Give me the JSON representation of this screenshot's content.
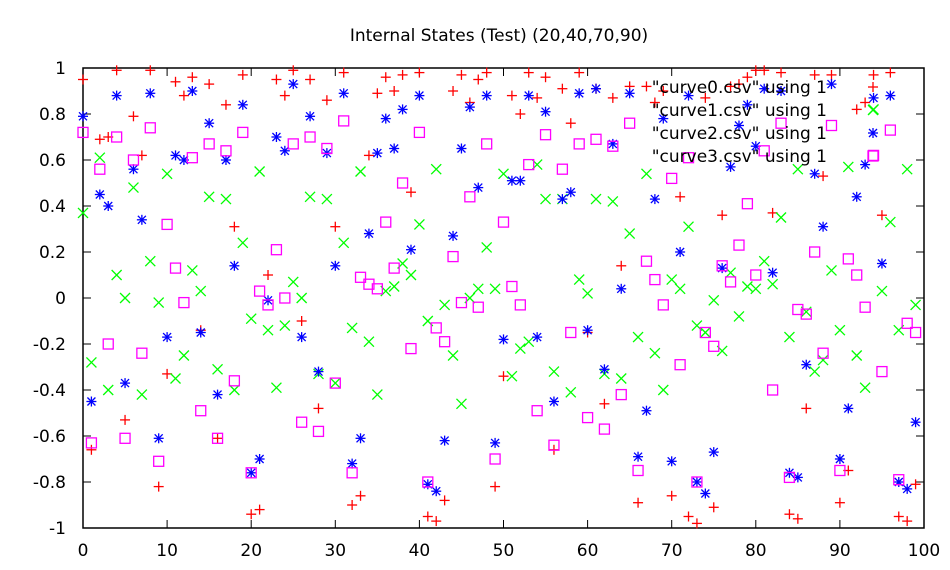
{
  "chart_data": {
    "type": "scatter",
    "title": "Internal States (Test) (20,40,70,90)",
    "xlabel": "",
    "ylabel": "",
    "xlim": [
      0,
      100
    ],
    "ylim": [
      -1,
      1
    ],
    "x_ticks": [
      "0",
      "10",
      "20",
      "30",
      "40",
      "50",
      "60",
      "70",
      "80",
      "90",
      "100"
    ],
    "y_ticks": [
      "-1",
      "-0.8",
      "-0.6",
      "-0.4",
      "-0.2",
      "0",
      "0.2",
      "0.4",
      "0.6",
      "0.8",
      "1"
    ],
    "grid": false,
    "legend_position": "top-right",
    "series": [
      {
        "name": "\"curve0.csv\" using 1",
        "color": "#ff0000",
        "marker": "plus",
        "x": [
          0,
          1,
          2,
          3,
          4,
          5,
          6,
          7,
          8,
          9,
          10,
          11,
          12,
          13,
          14,
          15,
          16,
          17,
          18,
          19,
          20,
          21,
          22,
          23,
          24,
          25,
          26,
          27,
          28,
          29,
          30,
          31,
          32,
          33,
          34,
          35,
          36,
          37,
          38,
          39,
          40,
          41,
          42,
          43,
          44,
          45,
          46,
          47,
          48,
          49,
          50,
          51,
          52,
          53,
          54,
          55,
          56,
          57,
          58,
          59,
          60,
          61,
          62,
          63,
          64,
          65,
          66,
          67,
          68,
          69,
          70,
          71,
          72,
          73,
          74,
          75,
          76,
          77,
          78,
          79,
          80,
          81,
          82,
          83,
          84,
          85,
          86,
          87,
          88,
          89,
          90,
          91,
          92,
          93,
          94,
          95,
          96,
          97,
          98,
          99
        ],
        "values": [
          0.95,
          -0.66,
          0.69,
          0.7,
          0.99,
          -0.53,
          0.79,
          0.62,
          0.99,
          -0.82,
          -0.33,
          0.94,
          0.88,
          0.96,
          -0.14,
          0.93,
          -0.61,
          0.84,
          0.31,
          0.97,
          -0.94,
          -0.92,
          0.1,
          0.95,
          0.88,
          0.99,
          -0.1,
          0.95,
          -0.48,
          0.86,
          0.31,
          0.98,
          -0.9,
          -0.86,
          0.62,
          0.89,
          0.96,
          0.9,
          0.97,
          0.46,
          0.98,
          -0.95,
          -0.97,
          -0.88,
          0.9,
          0.97,
          0.85,
          0.95,
          0.98,
          -0.82,
          -0.34,
          0.88,
          0.8,
          0.98,
          0.87,
          0.96,
          -0.66,
          0.91,
          0.76,
          0.98,
          -0.15,
          0.91,
          -0.46,
          0.87,
          0.14,
          0.92,
          -0.89,
          0.92,
          0.85,
          0.9,
          -0.86,
          0.44,
          -0.95,
          -0.98,
          0.87,
          -0.91,
          0.36,
          0.92,
          0.93,
          0.96,
          0.99,
          0.99,
          0.37,
          0.98,
          -0.94,
          -0.96,
          -0.48,
          0.97,
          0.53,
          0.97,
          -0.89,
          -0.75,
          0.82,
          0.85,
          0.97,
          0.36,
          0.98,
          -0.95,
          -0.97,
          -0.81
        ]
      },
      {
        "name": "\"curve1.csv\" using 1",
        "color": "#00ff00",
        "marker": "cross",
        "x": [
          0,
          1,
          2,
          3,
          4,
          5,
          6,
          7,
          8,
          9,
          10,
          11,
          12,
          13,
          14,
          15,
          16,
          17,
          18,
          19,
          20,
          21,
          22,
          23,
          24,
          25,
          26,
          27,
          28,
          29,
          30,
          31,
          32,
          33,
          34,
          35,
          36,
          37,
          38,
          39,
          40,
          41,
          42,
          43,
          44,
          45,
          46,
          47,
          48,
          49,
          50,
          51,
          52,
          53,
          54,
          55,
          56,
          57,
          58,
          59,
          60,
          61,
          62,
          63,
          64,
          65,
          66,
          67,
          68,
          69,
          70,
          71,
          72,
          73,
          74,
          75,
          76,
          77,
          78,
          79,
          80,
          81,
          82,
          83,
          84,
          85,
          86,
          87,
          88,
          89,
          90,
          91,
          92,
          93,
          94,
          95,
          96,
          97,
          98,
          99
        ],
        "values": [
          0.37,
          -0.28,
          0.61,
          -0.4,
          0.1,
          0.0,
          0.48,
          -0.42,
          0.16,
          -0.02,
          0.54,
          -0.35,
          -0.25,
          0.12,
          0.03,
          0.44,
          -0.31,
          0.43,
          -0.4,
          0.24,
          -0.09,
          0.55,
          -0.14,
          -0.39,
          -0.12,
          0.07,
          0.0,
          0.44,
          -0.33,
          0.43,
          -0.37,
          0.24,
          -0.13,
          0.55,
          -0.19,
          -0.42,
          0.03,
          0.05,
          0.15,
          0.1,
          0.32,
          -0.1,
          0.56,
          -0.03,
          -0.25,
          -0.46,
          0.0,
          0.04,
          0.22,
          0.04,
          0.54,
          -0.34,
          -0.22,
          -0.19,
          0.58,
          0.43,
          -0.32,
          0.43,
          -0.41,
          0.08,
          0.02,
          0.43,
          -0.33,
          0.42,
          -0.35,
          0.28,
          -0.17,
          0.54,
          -0.24,
          -0.4,
          0.08,
          0.04,
          0.31,
          -0.12,
          -0.15,
          -0.01,
          -0.23,
          0.11,
          -0.08,
          0.05,
          0.04,
          0.16,
          0.06,
          0.35,
          -0.17,
          0.56,
          -0.06,
          -0.32,
          -0.27,
          0.12,
          -0.14,
          0.57,
          -0.25,
          -0.39,
          0.82,
          0.03,
          0.33,
          -0.14,
          0.56,
          -0.03
        ]
      },
      {
        "name": "\"curve2.csv\" using 1",
        "color": "#0000ff",
        "marker": "star",
        "x": [
          0,
          1,
          2,
          3,
          4,
          5,
          6,
          7,
          8,
          9,
          10,
          11,
          12,
          13,
          14,
          15,
          16,
          17,
          18,
          19,
          20,
          21,
          22,
          23,
          24,
          25,
          26,
          27,
          28,
          29,
          30,
          31,
          32,
          33,
          34,
          35,
          36,
          37,
          38,
          39,
          40,
          41,
          42,
          43,
          44,
          45,
          46,
          47,
          48,
          49,
          50,
          51,
          52,
          53,
          54,
          55,
          56,
          57,
          58,
          59,
          60,
          61,
          62,
          63,
          64,
          65,
          66,
          67,
          68,
          69,
          70,
          71,
          72,
          73,
          74,
          75,
          76,
          77,
          78,
          79,
          80,
          81,
          82,
          83,
          84,
          85,
          86,
          87,
          88,
          89,
          90,
          91,
          92,
          93,
          94,
          95,
          96,
          97,
          98,
          99
        ],
        "values": [
          0.79,
          -0.45,
          0.45,
          0.4,
          0.88,
          -0.37,
          0.56,
          0.34,
          0.89,
          -0.61,
          -0.17,
          0.62,
          0.6,
          0.9,
          -0.15,
          0.76,
          -0.42,
          0.6,
          0.14,
          0.84,
          -0.76,
          -0.7,
          -0.01,
          0.7,
          0.64,
          0.93,
          -0.17,
          0.79,
          -0.32,
          0.63,
          0.14,
          0.89,
          -0.72,
          -0.61,
          0.28,
          0.63,
          0.78,
          0.65,
          0.82,
          0.21,
          0.88,
          -0.81,
          -0.84,
          -0.62,
          0.27,
          0.65,
          0.83,
          0.48,
          0.88,
          -0.63,
          -0.18,
          0.51,
          0.51,
          0.88,
          -0.17,
          0.81,
          -0.45,
          0.43,
          0.46,
          0.89,
          -0.14,
          0.91,
          -0.31,
          0.67,
          0.04,
          0.89,
          -0.69,
          -0.49,
          0.43,
          0.78,
          -0.71,
          0.2,
          0.88,
          -0.8,
          -0.85,
          -0.67,
          0.13,
          0.57,
          0.75,
          0.84,
          0.66,
          0.91,
          0.11,
          0.9,
          -0.76,
          -0.78,
          -0.29,
          0.54,
          0.31,
          0.93,
          -0.7,
          -0.48,
          0.44,
          0.58,
          0.87,
          0.15,
          0.88,
          -0.8,
          -0.83,
          -0.54
        ]
      },
      {
        "name": "\"curve3.csv\" using 1",
        "color": "#ff00ff",
        "marker": "square",
        "x": [
          0,
          1,
          2,
          3,
          4,
          5,
          6,
          7,
          8,
          9,
          10,
          11,
          12,
          13,
          14,
          15,
          16,
          17,
          18,
          19,
          20,
          21,
          22,
          23,
          24,
          25,
          26,
          27,
          28,
          29,
          30,
          31,
          32,
          33,
          34,
          35,
          36,
          37,
          38,
          39,
          40,
          41,
          42,
          43,
          44,
          45,
          46,
          47,
          48,
          49,
          50,
          51,
          52,
          53,
          54,
          55,
          56,
          57,
          58,
          59,
          60,
          61,
          62,
          63,
          64,
          65,
          66,
          67,
          68,
          69,
          70,
          71,
          72,
          73,
          74,
          75,
          76,
          77,
          78,
          79,
          80,
          81,
          82,
          83,
          84,
          85,
          86,
          87,
          88,
          89,
          90,
          91,
          92,
          93,
          94,
          95,
          96,
          97,
          98,
          99
        ],
        "values": [
          0.72,
          -0.63,
          0.56,
          -0.2,
          0.7,
          -0.61,
          0.6,
          -0.24,
          0.74,
          -0.71,
          0.32,
          0.13,
          -0.02,
          0.61,
          -0.49,
          0.67,
          -0.61,
          0.64,
          -0.36,
          0.72,
          -0.76,
          0.03,
          -0.03,
          0.21,
          0.0,
          0.67,
          -0.54,
          0.7,
          -0.58,
          0.65,
          -0.37,
          0.77,
          -0.76,
          0.09,
          0.06,
          0.04,
          0.33,
          0.13,
          0.5,
          -0.22,
          0.72,
          -0.8,
          -0.13,
          -0.19,
          0.18,
          -0.02,
          0.44,
          -0.04,
          0.67,
          -0.7,
          0.33,
          0.05,
          -0.03,
          0.58,
          -0.49,
          0.71,
          -0.64,
          0.56,
          -0.15,
          0.67,
          -0.52,
          0.69,
          -0.57,
          0.66,
          -0.42,
          0.76,
          -0.75,
          0.16,
          0.08,
          -0.03,
          0.52,
          -0.29,
          0.61,
          -0.8,
          -0.15,
          -0.21,
          0.14,
          0.07,
          0.23,
          0.41,
          0.1,
          0.64,
          -0.4,
          0.76,
          -0.78,
          -0.05,
          -0.07,
          0.2,
          -0.24,
          0.75,
          -0.75,
          0.17,
          0.1,
          -0.04,
          0.62,
          -0.32,
          0.73,
          -0.79,
          -0.11,
          -0.15
        ]
      }
    ]
  }
}
